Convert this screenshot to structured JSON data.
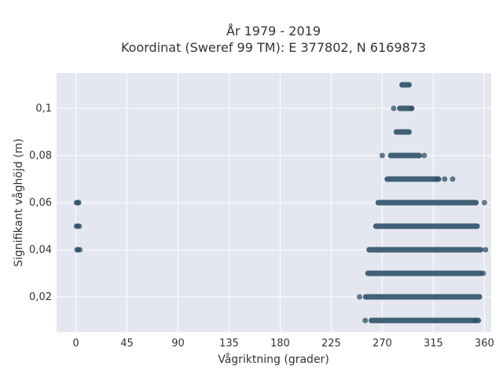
{
  "chart_data": {
    "type": "scatter",
    "title_line1": "År 1979 - 2019",
    "title_line2": "Koordinat (Sweref 99 TM): E 377802, N 6169873",
    "xlabel": "Vågriktning (grader)",
    "ylabel": "Signifikant våghöjd (m)",
    "xlim": [
      -17,
      366
    ],
    "ylim": [
      0.005,
      0.115
    ],
    "x_ticks": [
      0,
      45,
      90,
      135,
      180,
      225,
      270,
      315,
      360
    ],
    "x_tick_labels": [
      "0",
      "45",
      "90",
      "135",
      "180",
      "225",
      "270",
      "315",
      "360"
    ],
    "y_ticks": [
      0.02,
      0.04,
      0.06,
      0.08,
      0.1
    ],
    "y_tick_labels": [
      "0,02",
      "0,04",
      "0,06",
      "0,08",
      "0,1"
    ],
    "grid": true,
    "marker_color": "#2e5168",
    "background_color": "#e5e7f0",
    "grid_color": "#ffffff",
    "dense_bands": [
      {
        "y": 0.01,
        "x_min": 258,
        "x_max": 357
      },
      {
        "y": 0.02,
        "x_min": 253,
        "x_max": 358
      },
      {
        "y": 0.03,
        "x_min": 255,
        "x_max": 359
      },
      {
        "y": 0.04,
        "x_min": 256,
        "x_max": 359
      },
      {
        "y": 0.05,
        "x_min": 262,
        "x_max": 356
      },
      {
        "y": 0.06,
        "x_min": 264,
        "x_max": 355
      },
      {
        "y": 0.07,
        "x_min": 272,
        "x_max": 322
      },
      {
        "y": 0.08,
        "x_min": 275,
        "x_max": 305
      },
      {
        "y": 0.09,
        "x_min": 280,
        "x_max": 296
      },
      {
        "y": 0.1,
        "x_min": 283,
        "x_max": 298
      },
      {
        "y": 0.11,
        "x_min": 285,
        "x_max": 296
      }
    ],
    "points": [
      {
        "x": 0.5,
        "y": 0.06
      },
      {
        "x": 1.5,
        "y": 0.06
      },
      {
        "x": 2.5,
        "y": 0.06
      },
      {
        "x": 0.5,
        "y": 0.05
      },
      {
        "x": 1.5,
        "y": 0.05
      },
      {
        "x": 3,
        "y": 0.05
      },
      {
        "x": 1,
        "y": 0.04
      },
      {
        "x": 2,
        "y": 0.04
      },
      {
        "x": 3.5,
        "y": 0.04
      },
      {
        "x": 270,
        "y": 0.08
      },
      {
        "x": 332,
        "y": 0.07
      },
      {
        "x": 280,
        "y": 0.1
      },
      {
        "x": 296,
        "y": 0.1
      },
      {
        "x": 307,
        "y": 0.08
      },
      {
        "x": 361,
        "y": 0.04
      },
      {
        "x": 360,
        "y": 0.06
      },
      {
        "x": 250,
        "y": 0.02
      },
      {
        "x": 255,
        "y": 0.01
      },
      {
        "x": 352,
        "y": 0.01
      },
      {
        "x": 325,
        "y": 0.07
      },
      {
        "x": 318,
        "y": 0.07
      },
      {
        "x": 359,
        "y": 0.03
      }
    ]
  }
}
